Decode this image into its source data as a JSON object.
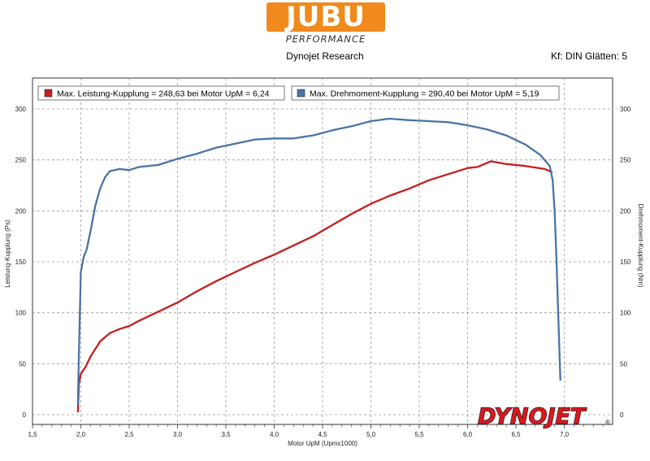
{
  "header": {
    "logo_text": "JUBU",
    "logo_subtext": "PERFORMANCE",
    "subtitle": "Dynojet Research",
    "filter_label": "Kf: DIN Glätten: 5"
  },
  "watermark": {
    "text": "DYNOJET",
    "mark": "®"
  },
  "colors": {
    "power": "#c41e1e",
    "torque": "#4a74a4",
    "grid": "#9a9a9a",
    "background": "#ffffff"
  },
  "chart_data": {
    "type": "line",
    "xlabel": "Motor UpM (Upmx1000)",
    "ylabel_left": "Leistung-Kupplung (Ps)",
    "ylabel_right": "Drehmoment-Kupplung (Nm)",
    "xlim": [
      1.5,
      7.5
    ],
    "ylim": [
      0,
      300
    ],
    "xticks": [
      "1,5",
      "2,0",
      "2,5",
      "3,0",
      "3,5",
      "4,0",
      "4,5",
      "5,0",
      "5,5",
      "6,0",
      "6,5",
      "7,0"
    ],
    "yticks": [
      "0",
      "50",
      "100",
      "150",
      "200",
      "250",
      "300"
    ],
    "grid": true,
    "legend_position": "top-left",
    "series": [
      {
        "name": "Max. Leistung-Kupplung = 248,63 bei Motor UpM = 6,24",
        "axis": "left",
        "x": [
          1.97,
          1.98,
          2.0,
          2.05,
          2.1,
          2.2,
          2.3,
          2.4,
          2.5,
          2.6,
          2.8,
          3.0,
          3.2,
          3.4,
          3.6,
          3.8,
          4.0,
          4.2,
          4.4,
          4.6,
          4.8,
          5.0,
          5.2,
          5.4,
          5.6,
          5.8,
          6.0,
          6.1,
          6.24,
          6.4,
          6.6,
          6.8,
          6.87
        ],
        "y": [
          3,
          30,
          40,
          47,
          57,
          72,
          80,
          84,
          87,
          92,
          101,
          110,
          121,
          131,
          140,
          149,
          157,
          166,
          175,
          186,
          197,
          207,
          215,
          222,
          230,
          236,
          242,
          243,
          248.63,
          246,
          244,
          241,
          238
        ]
      },
      {
        "name": "Max. Drehmoment-Kupplung = 290,40 bei Motor UpM = 5,19",
        "axis": "right",
        "x": [
          1.97,
          1.98,
          2.0,
          2.03,
          2.06,
          2.1,
          2.15,
          2.2,
          2.25,
          2.3,
          2.4,
          2.5,
          2.6,
          2.8,
          3.0,
          3.2,
          3.4,
          3.6,
          3.8,
          4.0,
          4.2,
          4.4,
          4.6,
          4.8,
          5.0,
          5.19,
          5.4,
          5.6,
          5.8,
          6.0,
          6.2,
          6.4,
          6.6,
          6.75,
          6.85,
          6.88,
          6.9,
          6.92,
          6.94,
          6.96
        ],
        "y": [
          10,
          60,
          140,
          155,
          162,
          180,
          205,
          222,
          233,
          239,
          241,
          240,
          243,
          245,
          251,
          256,
          262,
          266,
          270,
          271,
          271,
          274,
          279,
          283,
          288,
          290.4,
          289,
          288,
          287,
          284,
          280,
          274,
          265,
          255,
          244,
          230,
          200,
          150,
          90,
          34
        ]
      }
    ]
  }
}
